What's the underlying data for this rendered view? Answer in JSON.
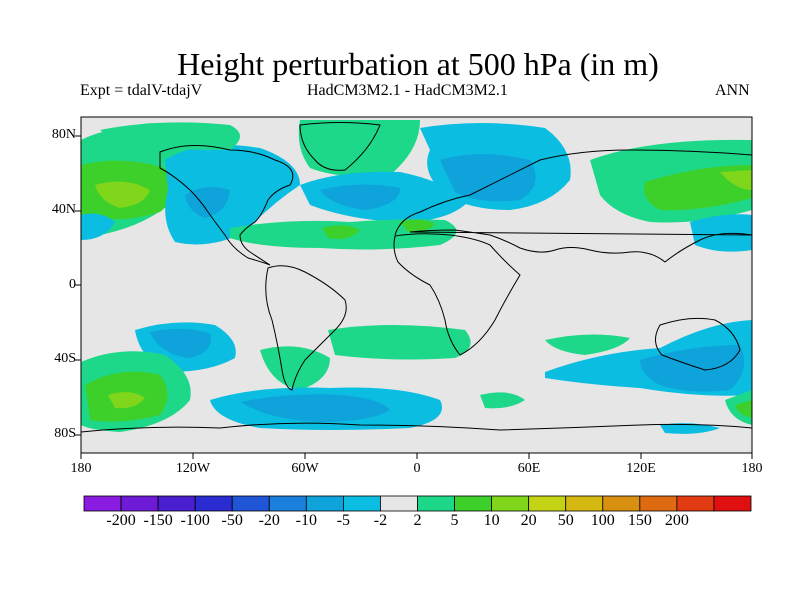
{
  "title": "Height perturbation at 500 hPa (in m)",
  "subtitle_left": "Expt = tdalV-tdajV",
  "subtitle_center": "HadCM3M2.1 - HadCM3M2.1",
  "subtitle_right": "ANN",
  "lat_labels": [
    "80N",
    "40N",
    "0",
    "40S",
    "80S"
  ],
  "lon_labels": [
    "180",
    "120W",
    "60W",
    "0",
    "60E",
    "120E",
    "180"
  ],
  "colorbar": {
    "labels": [
      "-200",
      "-150",
      "-100",
      "-50",
      "-20",
      "-10",
      "-5",
      "-2",
      "2",
      "5",
      "10",
      "20",
      "50",
      "100",
      "150",
      "200"
    ],
    "colors": [
      "#8a1be0",
      "#6e1bd8",
      "#4a1fd0",
      "#2a2cd2",
      "#1f55d6",
      "#1b7fdc",
      "#0fa3dc",
      "#0bbde0",
      "#e6e6e6",
      "#1ed88a",
      "#3dcf2a",
      "#7fd61a",
      "#c4d414",
      "#d6b812",
      "#d99010",
      "#de6a12",
      "#e23a12",
      "#e01010"
    ]
  },
  "background_color": "#e6e6e6"
}
